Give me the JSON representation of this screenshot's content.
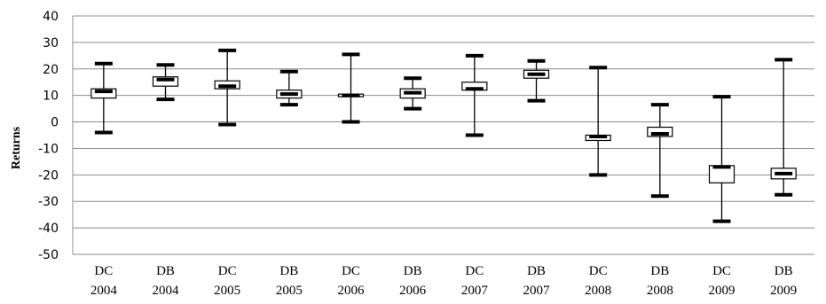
{
  "chart_data": {
    "type": "boxplot",
    "title": "",
    "xlabel": "",
    "ylabel": "Returns",
    "ylim": [
      -50,
      40
    ],
    "ytick_step": 10,
    "grid": true,
    "legend": "none",
    "box_fill": "#ffffff",
    "categories": [
      [
        "DC",
        "2004"
      ],
      [
        "DB",
        "2004"
      ],
      [
        "DC",
        "2005"
      ],
      [
        "DB",
        "2005"
      ],
      [
        "DC",
        "2006"
      ],
      [
        "DB",
        "2006"
      ],
      [
        "DC",
        "2007"
      ],
      [
        "DB",
        "2007"
      ],
      [
        "DC",
        "2008"
      ],
      [
        "DB",
        "2008"
      ],
      [
        "DC",
        "2009"
      ],
      [
        "DB",
        "2009"
      ]
    ],
    "boxes": [
      {
        "min": -4,
        "q1": 9,
        "median": 11.5,
        "q3": 12.5,
        "max": 22
      },
      {
        "min": 8.5,
        "q1": 13.5,
        "median": 16,
        "q3": 17,
        "max": 21.5
      },
      {
        "min": -1,
        "q1": 12.5,
        "median": 13.5,
        "q3": 15.5,
        "max": 27
      },
      {
        "min": 6.5,
        "q1": 9,
        "median": 10.5,
        "q3": 12,
        "max": 19
      },
      {
        "min": 0,
        "q1": 9.5,
        "median": 10,
        "q3": 10.5,
        "max": 25.5
      },
      {
        "min": 5,
        "q1": 9,
        "median": 11,
        "q3": 12.5,
        "max": 16.5
      },
      {
        "min": -5,
        "q1": 12,
        "median": 12.5,
        "q3": 15,
        "max": 25
      },
      {
        "min": 8,
        "q1": 16.5,
        "median": 18,
        "q3": 19.5,
        "max": 23
      },
      {
        "min": -20,
        "q1": -7,
        "median": -5.5,
        "q3": -5,
        "max": 20.5
      },
      {
        "min": -28,
        "q1": -5.5,
        "median": -4.5,
        "q3": -2,
        "max": 6.5
      },
      {
        "min": -37.5,
        "q1": -23,
        "median": -17,
        "q3": -16.5,
        "max": 9.5
      },
      {
        "min": -27.5,
        "q1": -21.5,
        "median": -19.5,
        "q3": -17.5,
        "max": 23.5
      }
    ]
  }
}
